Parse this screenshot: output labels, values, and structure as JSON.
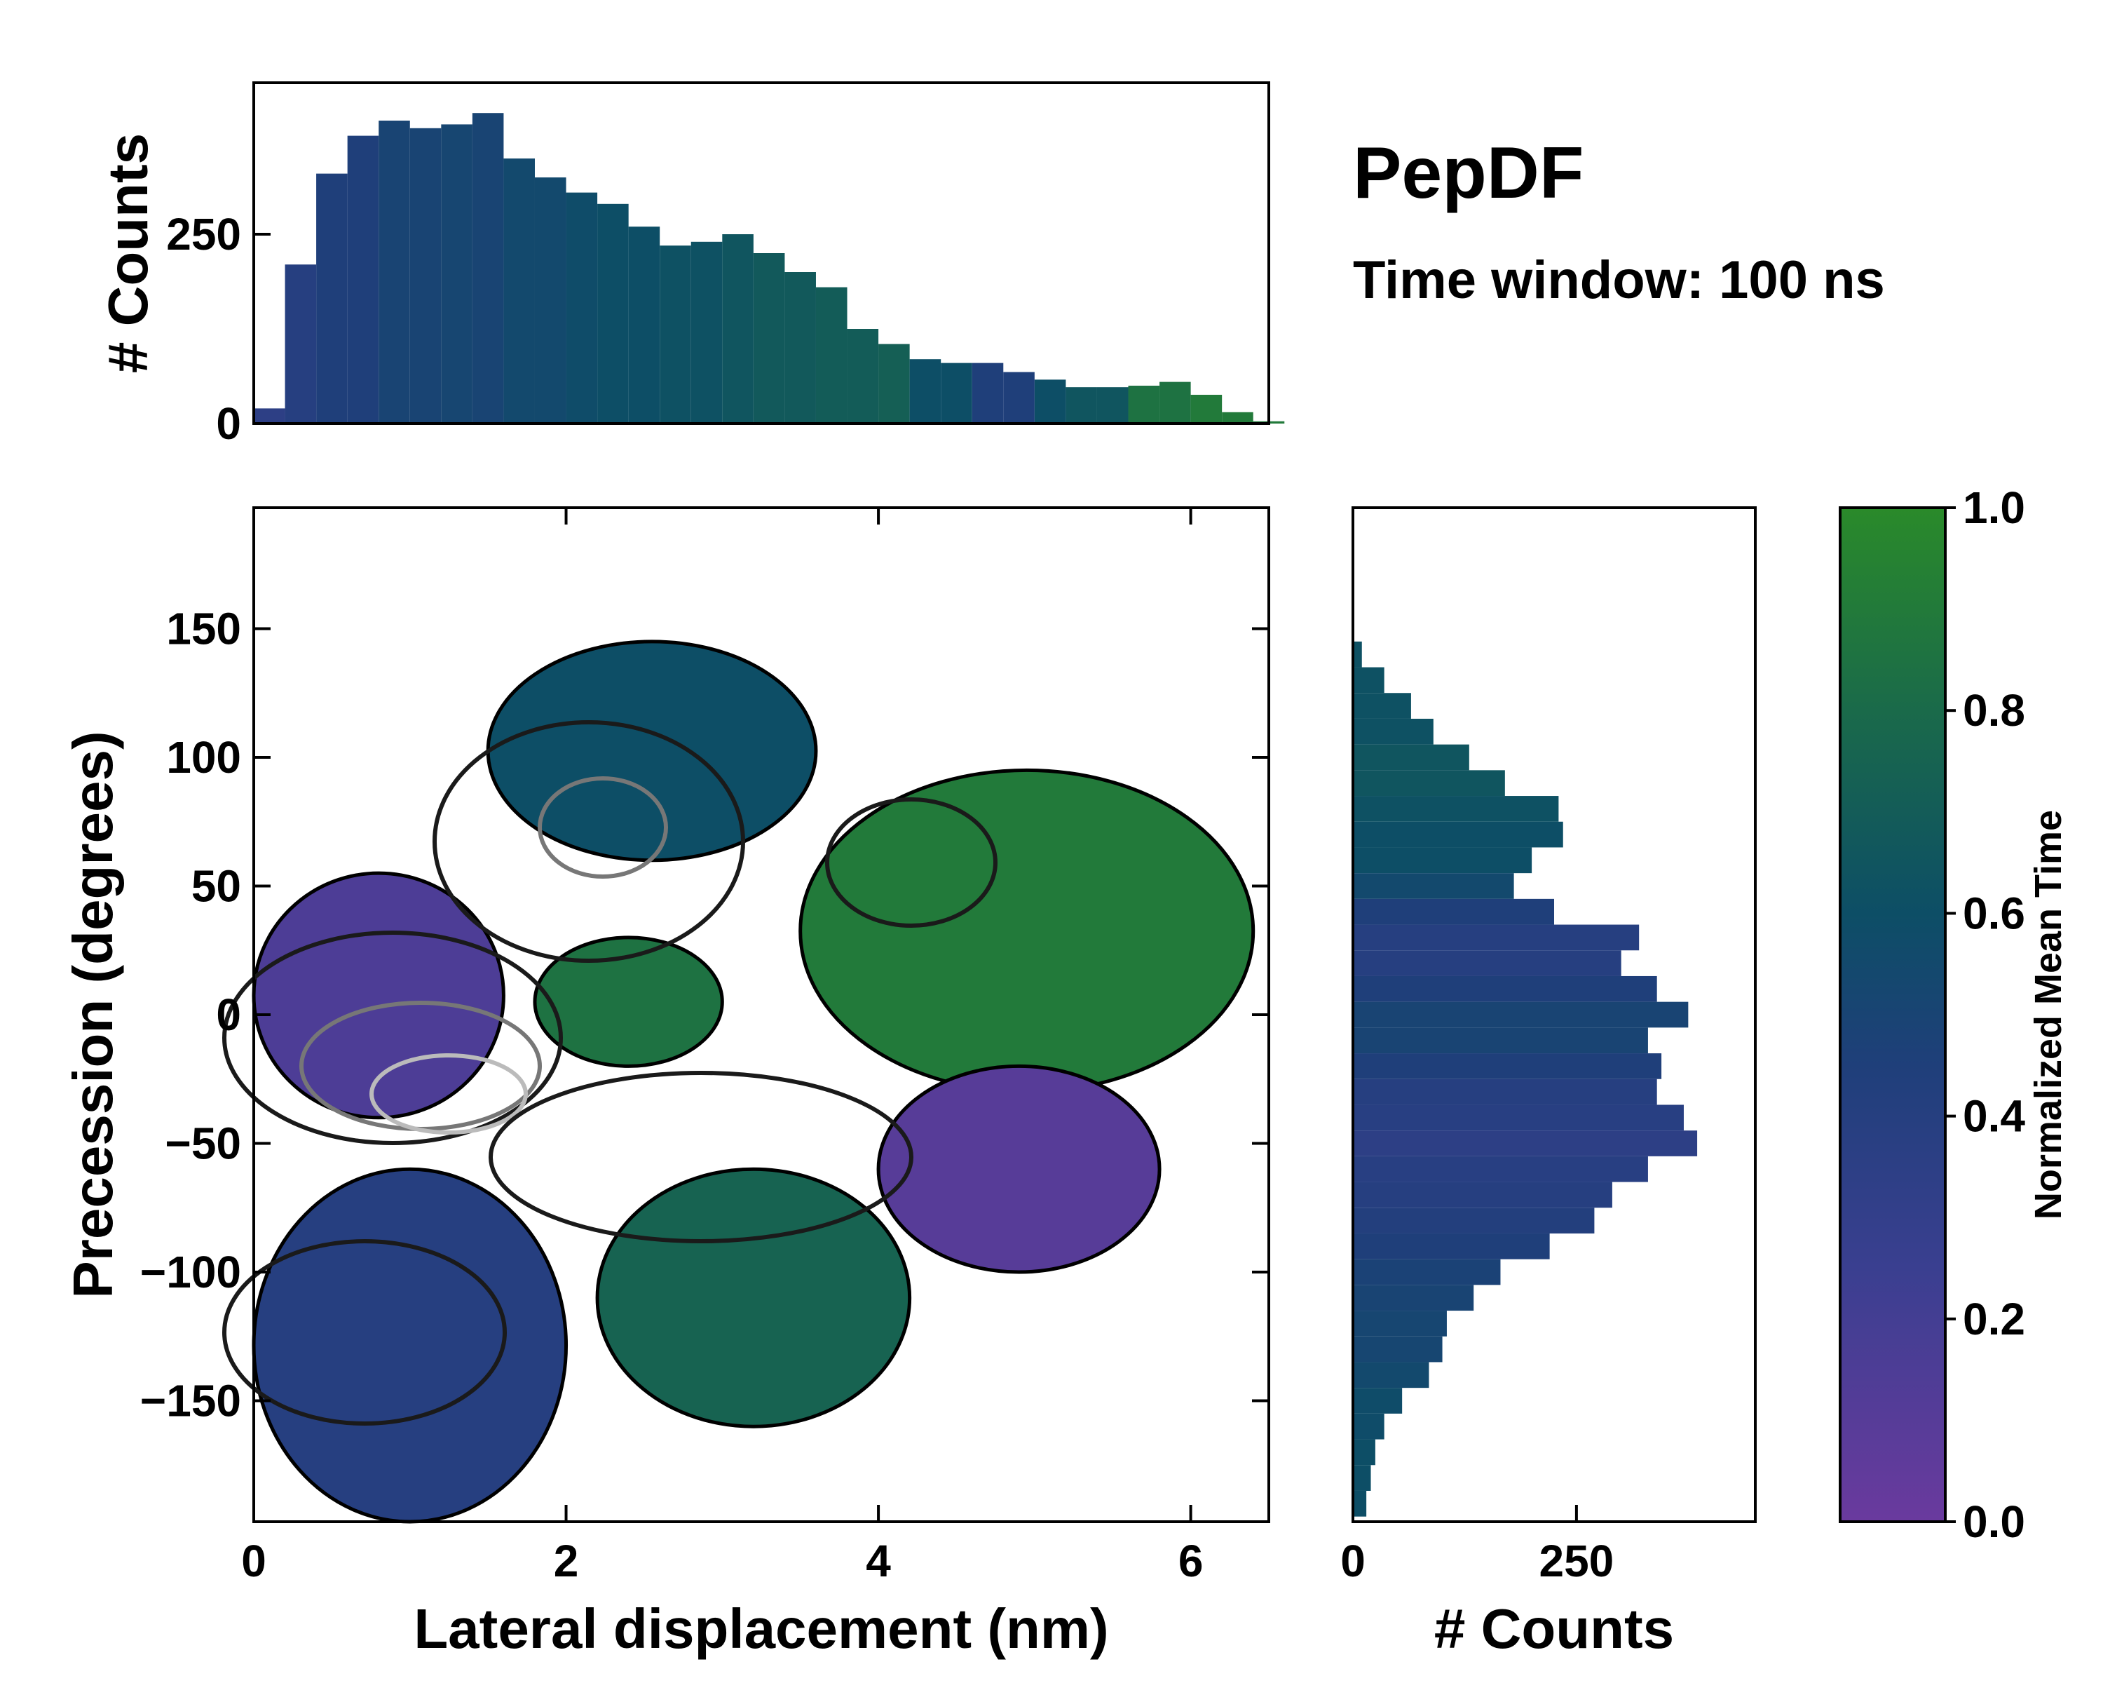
{
  "title": "PepDF",
  "subtitle": "Time window: 100 ns",
  "colors": {
    "low": "#6a3a9e",
    "mid": "#1f3f7a",
    "midhigh": "#0d4e66",
    "high": "#2a8a2a"
  },
  "chart_data": [
    {
      "type": "heatmap",
      "name": "main-2d-histogram",
      "xlabel": "Lateral displacement (nm)",
      "ylabel": "Precession (degrees)",
      "xlim": [
        0,
        6.5
      ],
      "ylim": [
        -197,
        197
      ],
      "xticks": [
        "0",
        "2",
        "4",
        "6"
      ],
      "xtick_values": [
        0,
        2,
        4,
        6
      ],
      "yticks": [
        "150",
        "100",
        "50",
        "0",
        "−50",
        "−100",
        "−150"
      ],
      "ytick_values": [
        150,
        100,
        50,
        0,
        -50,
        -100,
        -150
      ],
      "color_metric": "Normalized Mean Time",
      "regions": [
        {
          "name": "purple-cluster-left",
          "x": [
            0,
            1.6
          ],
          "y": [
            -40,
            55
          ],
          "value": 0.15
        },
        {
          "name": "blue-lower-left",
          "x": [
            0,
            2
          ],
          "y": [
            -197,
            -60
          ],
          "value": 0.4
        },
        {
          "name": "green-center",
          "x": [
            1.8,
            3.0
          ],
          "y": [
            -20,
            30
          ],
          "value": 0.85
        },
        {
          "name": "green-upper-right",
          "x": [
            3.5,
            6.4
          ],
          "y": [
            -30,
            95
          ],
          "value": 0.9
        },
        {
          "name": "purple-lower-right",
          "x": [
            4,
            5.8
          ],
          "y": [
            -100,
            -20
          ],
          "value": 0.1
        },
        {
          "name": "teal-upper-middle",
          "x": [
            1.5,
            3.6
          ],
          "y": [
            60,
            145
          ],
          "value": 0.6
        },
        {
          "name": "green-lower-middle",
          "x": [
            2.2,
            4.2
          ],
          "y": [
            -160,
            -60
          ],
          "value": 0.75
        }
      ]
    },
    {
      "type": "bar",
      "name": "top-marginal-histogram",
      "ylabel": "# Counts",
      "xlim": [
        0,
        6.5
      ],
      "ylim": [
        0,
        450
      ],
      "yticks": [
        "0",
        "250"
      ],
      "ytick_values": [
        0,
        250
      ],
      "x": [
        0.0,
        0.2,
        0.4,
        0.6,
        0.8,
        1.0,
        1.2,
        1.4,
        1.6,
        1.8,
        2.0,
        2.2,
        2.4,
        2.6,
        2.8,
        3.0,
        3.2,
        3.4,
        3.6,
        3.8,
        4.0,
        4.2,
        4.4,
        4.6,
        4.8,
        5.0,
        5.2,
        5.4,
        5.6,
        5.8,
        6.0,
        6.2,
        6.4
      ],
      "values": [
        20,
        210,
        330,
        380,
        400,
        390,
        395,
        410,
        350,
        325,
        305,
        290,
        260,
        235,
        240,
        250,
        225,
        200,
        180,
        125,
        105,
        85,
        80,
        80,
        68,
        58,
        48,
        48,
        50,
        55,
        38,
        15,
        3
      ],
      "color_values": [
        0.35,
        0.4,
        0.45,
        0.45,
        0.5,
        0.5,
        0.52,
        0.5,
        0.55,
        0.55,
        0.58,
        0.6,
        0.6,
        0.62,
        0.62,
        0.65,
        0.68,
        0.68,
        0.7,
        0.7,
        0.72,
        0.6,
        0.6,
        0.45,
        0.45,
        0.6,
        0.65,
        0.65,
        0.85,
        0.85,
        0.9,
        0.9,
        0.9
      ]
    },
    {
      "type": "bar",
      "name": "right-marginal-histogram",
      "orientation": "horizontal",
      "xlabel": "# Counts",
      "xlim": [
        0,
        450
      ],
      "ylim": [
        -197,
        197
      ],
      "xticks": [
        "0",
        "250"
      ],
      "xtick_values": [
        0,
        250
      ],
      "y": [
        140,
        130,
        120,
        110,
        100,
        90,
        80,
        70,
        60,
        50,
        40,
        30,
        20,
        10,
        0,
        -10,
        -20,
        -30,
        -40,
        -50,
        -60,
        -70,
        -80,
        -90,
        -100,
        -110,
        -120,
        -130,
        -140,
        -150,
        -160,
        -170,
        -180,
        -190
      ],
      "values": [
        10,
        35,
        65,
        90,
        130,
        170,
        230,
        235,
        200,
        180,
        225,
        320,
        300,
        340,
        375,
        330,
        345,
        340,
        370,
        385,
        330,
        290,
        270,
        220,
        165,
        135,
        105,
        100,
        85,
        55,
        35,
        25,
        20,
        15
      ],
      "color_values": [
        0.62,
        0.62,
        0.62,
        0.62,
        0.65,
        0.65,
        0.62,
        0.6,
        0.6,
        0.55,
        0.45,
        0.4,
        0.4,
        0.45,
        0.5,
        0.5,
        0.45,
        0.4,
        0.38,
        0.35,
        0.38,
        0.4,
        0.42,
        0.45,
        0.48,
        0.5,
        0.52,
        0.52,
        0.55,
        0.58,
        0.58,
        0.6,
        0.6,
        0.6
      ]
    },
    {
      "type": "colorbar",
      "name": "colorbar",
      "label": "Normalized Mean Time",
      "range": [
        0.0,
        1.0
      ],
      "ticks": [
        "0.0",
        "0.2",
        "0.4",
        "0.6",
        "0.8",
        "1.0"
      ],
      "tick_values": [
        0.0,
        0.2,
        0.4,
        0.6,
        0.8,
        1.0
      ]
    }
  ]
}
